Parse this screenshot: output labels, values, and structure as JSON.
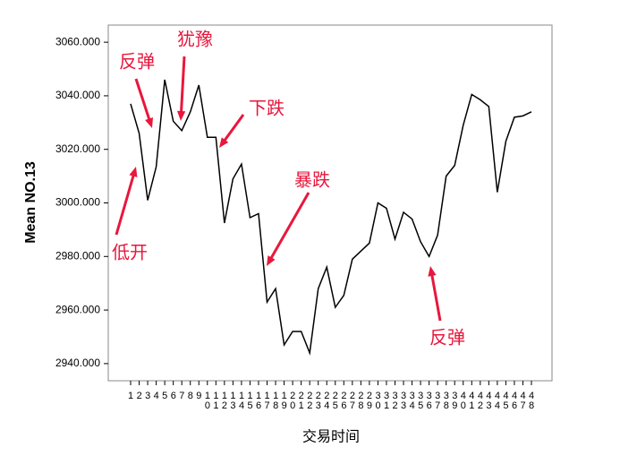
{
  "chart_data": {
    "type": "line",
    "x_label": "交易时间",
    "y_label": "Mean NO.13",
    "categories": [
      "1",
      "2",
      "3",
      "4",
      "5",
      "6",
      "7",
      "8",
      "9",
      "10",
      "11",
      "12",
      "13",
      "14",
      "15",
      "16",
      "17",
      "18",
      "19",
      "20",
      "21",
      "22",
      "23",
      "24",
      "25",
      "26",
      "27",
      "28",
      "29",
      "30",
      "31",
      "32",
      "33",
      "34",
      "35",
      "36",
      "37",
      "38",
      "39",
      "40",
      "41",
      "42",
      "43",
      "44",
      "45",
      "46",
      "47",
      "48"
    ],
    "values": [
      3037,
      3026,
      3001,
      3013.5,
      3046,
      3030.5,
      3027,
      3034,
      3044,
      3024.5,
      3024.5,
      2992.5,
      3009,
      3014.5,
      2994.5,
      2996,
      2963,
      2968,
      2947,
      2952,
      2952,
      2944,
      2968,
      2976,
      2961,
      2965.5,
      2979,
      2982,
      2985,
      3000,
      2998,
      2986.5,
      2996.5,
      2994,
      2985.5,
      2980,
      2988,
      3010,
      3014,
      3029,
      3040.5,
      3038.5,
      3036,
      3004,
      3023,
      3032,
      3032.5,
      3034
    ],
    "color": "#000000",
    "ylim": [
      2933.6,
      3066.4
    ],
    "yticks": [
      {
        "value": 2940,
        "label": "2940.000"
      },
      {
        "value": 2960,
        "label": "2960.000"
      },
      {
        "value": 2980,
        "label": "2980.000"
      },
      {
        "value": 3000,
        "label": "3000.000"
      },
      {
        "value": 3020,
        "label": "3020.000"
      },
      {
        "value": 3040,
        "label": "3040.000"
      },
      {
        "value": 3060,
        "label": "3060.000"
      }
    ],
    "annotations": [
      "反弹",
      "犹豫",
      "下跌",
      "暴跌",
      "低开",
      "反弹"
    ],
    "annotation_color": "#e8173c"
  }
}
